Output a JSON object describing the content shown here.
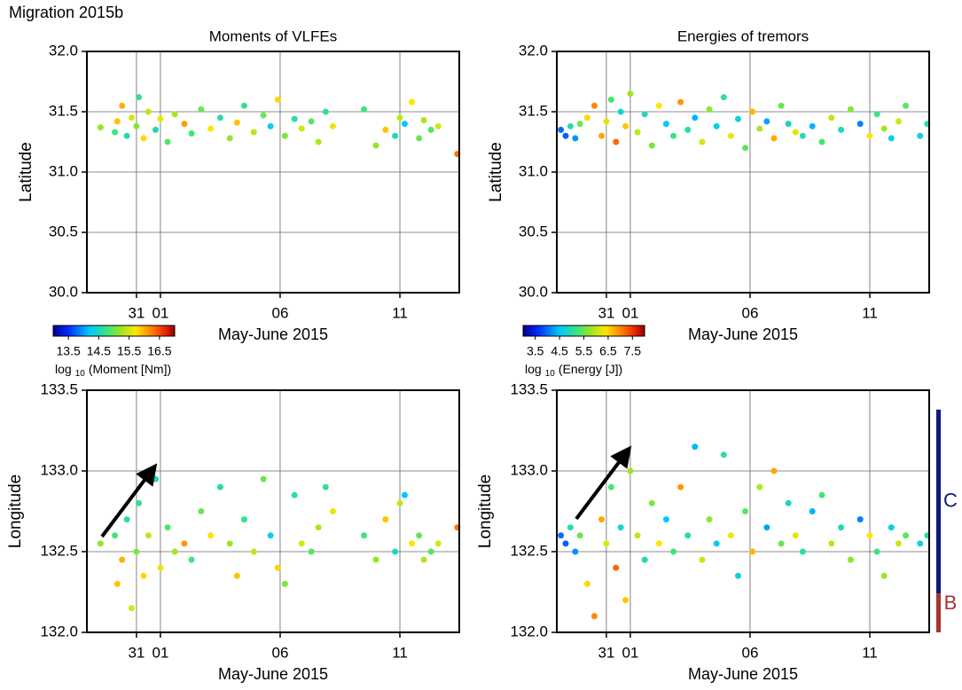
{
  "title": "Migration 2015b",
  "chart_data": [
    {
      "type": "scatter",
      "title": "Moments of VLFEs",
      "xlabel": "May-June 2015",
      "ylabel": "Latitude",
      "grid": true,
      "xlim": [
        28.93,
        44.48
      ],
      "xticks": [
        31,
        {
          "value": 32,
          "label": "01"
        },
        {
          "value": 37,
          "label": "06"
        },
        {
          "value": 42,
          "label": "11"
        }
      ],
      "ylim": [
        30,
        32
      ],
      "yticks": [
        {
          "value": 30,
          "label": "30.0"
        },
        30.5,
        {
          "value": 31,
          "label": "31.0"
        },
        31.5,
        {
          "value": 32,
          "label": "32.0"
        }
      ],
      "colormap": "jet",
      "colorbar": {
        "clim": [
          13,
          17
        ],
        "cticks": [
          13.5,
          14.5,
          15.5,
          16.5
        ],
        "label_prefix": "log",
        "label_subscript": "10",
        "label_text": "(Moment [Nm])"
      },
      "x": [
        29.5,
        30.1,
        30.2,
        30.4,
        30.6,
        30.8,
        31.0,
        31.1,
        31.3,
        31.5,
        31.8,
        32.0,
        32.3,
        32.6,
        33.0,
        33.3,
        33.7,
        34.1,
        34.5,
        34.9,
        35.2,
        35.5,
        35.9,
        36.3,
        36.6,
        36.9,
        37.2,
        37.6,
        37.9,
        38.3,
        38.6,
        38.9,
        39.2,
        40.5,
        41.0,
        41.4,
        41.8,
        42.0,
        42.2,
        42.5,
        42.8,
        43.0,
        43.3,
        43.6,
        44.4
      ],
      "y": [
        31.37,
        31.33,
        31.42,
        31.55,
        31.3,
        31.45,
        31.38,
        31.62,
        31.28,
        31.5,
        31.35,
        31.44,
        31.25,
        31.48,
        31.4,
        31.32,
        31.52,
        31.36,
        31.45,
        31.28,
        31.41,
        31.55,
        31.33,
        31.47,
        31.38,
        31.6,
        31.3,
        31.44,
        31.36,
        31.42,
        31.25,
        31.5,
        31.38,
        31.52,
        31.22,
        31.35,
        31.3,
        31.45,
        31.4,
        31.58,
        31.28,
        31.43,
        31.35,
        31.38,
        31.15
      ],
      "c": [
        15.2,
        14.8,
        15.9,
        16.0,
        14.6,
        15.5,
        15.1,
        14.7,
        15.8,
        15.4,
        14.5,
        15.6,
        14.9,
        15.3,
        16.1,
        14.8,
        15.0,
        15.7,
        14.6,
        15.2,
        15.9,
        14.7,
        15.4,
        15.0,
        14.3,
        15.8,
        15.1,
        14.6,
        15.5,
        14.9,
        15.3,
        14.7,
        15.6,
        14.8,
        15.2,
        15.9,
        14.5,
        15.4,
        14.2,
        15.7,
        15.0,
        15.3,
        14.9,
        15.5,
        16.3
      ]
    },
    {
      "type": "scatter",
      "title": "Energies of tremors",
      "xlabel": "May-June 2015",
      "ylabel": "Latitude",
      "grid": true,
      "xlim": [
        28.93,
        44.48
      ],
      "xticks": [
        31,
        {
          "value": 32,
          "label": "01"
        },
        {
          "value": 37,
          "label": "06"
        },
        {
          "value": 42,
          "label": "11"
        }
      ],
      "ylim": [
        30,
        32
      ],
      "yticks": [
        {
          "value": 30,
          "label": "30.0"
        },
        30.5,
        {
          "value": 31,
          "label": "31.0"
        },
        31.5,
        {
          "value": 32,
          "label": "32.0"
        }
      ],
      "colormap": "jet",
      "colorbar": {
        "clim": [
          3,
          8
        ],
        "cticks": [
          3.5,
          4.5,
          5.5,
          6.5,
          7.5
        ],
        "label_prefix": "log",
        "label_subscript": "10",
        "label_text": "(Energy [J])"
      },
      "x": [
        29.1,
        29.3,
        29.5,
        29.7,
        29.9,
        30.2,
        30.5,
        30.8,
        31.0,
        31.2,
        31.4,
        31.6,
        31.8,
        32.0,
        32.3,
        32.6,
        32.9,
        33.2,
        33.5,
        33.8,
        34.1,
        34.4,
        34.7,
        35.0,
        35.3,
        35.6,
        35.9,
        36.2,
        36.5,
        36.8,
        37.1,
        37.4,
        37.7,
        38.0,
        38.3,
        38.6,
        38.9,
        39.2,
        39.6,
        40.0,
        40.4,
        40.8,
        41.2,
        41.6,
        42.0,
        42.3,
        42.6,
        42.9,
        43.2,
        43.5,
        44.1,
        44.4
      ],
      "y": [
        31.35,
        31.3,
        31.38,
        31.28,
        31.4,
        31.45,
        31.55,
        31.3,
        31.42,
        31.6,
        31.25,
        31.5,
        31.38,
        31.65,
        31.33,
        31.48,
        31.22,
        31.55,
        31.4,
        31.3,
        31.58,
        31.35,
        31.45,
        31.25,
        31.52,
        31.38,
        31.62,
        31.3,
        31.44,
        31.2,
        31.5,
        31.36,
        31.42,
        31.28,
        31.55,
        31.4,
        31.33,
        31.3,
        31.38,
        31.25,
        31.45,
        31.35,
        31.52,
        31.4,
        31.3,
        31.48,
        31.36,
        31.28,
        31.42,
        31.55,
        31.3,
        31.4
      ],
      "c": [
        4.0,
        3.9,
        5.0,
        4.2,
        5.5,
        6.5,
        7.0,
        6.8,
        6.2,
        5.3,
        7.2,
        4.8,
        6.6,
        5.8,
        6.0,
        4.9,
        5.6,
        6.4,
        4.5,
        5.2,
        6.9,
        5.0,
        4.4,
        6.1,
        5.7,
        4.6,
        5.1,
        6.3,
        4.7,
        5.4,
        6.7,
        5.9,
        4.3,
        6.8,
        5.5,
        4.8,
        6.2,
        5.0,
        4.4,
        5.3,
        6.0,
        4.9,
        5.7,
        4.1,
        6.4,
        5.2,
        5.8,
        4.6,
        6.1,
        5.4,
        4.7,
        5.0
      ]
    },
    {
      "type": "scatter",
      "xlabel": "May-June 2015",
      "ylabel": "Longitude",
      "grid": true,
      "xlim": [
        28.93,
        44.48
      ],
      "xticks": [
        31,
        {
          "value": 32,
          "label": "01"
        },
        {
          "value": 37,
          "label": "06"
        },
        {
          "value": 42,
          "label": "11"
        }
      ],
      "ylim": [
        132,
        133.5
      ],
      "yticks": [
        {
          "value": 132,
          "label": "132.0"
        },
        132.5,
        {
          "value": 133,
          "label": "133.0"
        },
        133.5
      ],
      "colormap": "jet",
      "clim": [
        13,
        17
      ],
      "x": [
        29.5,
        30.1,
        30.2,
        30.4,
        30.6,
        30.8,
        31.0,
        31.1,
        31.3,
        31.5,
        31.8,
        32.0,
        32.3,
        32.6,
        33.0,
        33.3,
        33.7,
        34.1,
        34.5,
        34.9,
        35.2,
        35.5,
        35.9,
        36.3,
        36.6,
        36.9,
        37.2,
        37.6,
        37.9,
        38.3,
        38.6,
        38.9,
        39.2,
        40.5,
        41.0,
        41.4,
        41.8,
        42.0,
        42.2,
        42.5,
        42.8,
        43.0,
        43.3,
        43.6,
        44.4
      ],
      "y": [
        132.55,
        132.6,
        132.3,
        132.45,
        132.7,
        132.15,
        132.5,
        132.8,
        132.35,
        132.6,
        132.95,
        132.4,
        132.65,
        132.5,
        132.55,
        132.45,
        132.75,
        132.6,
        132.9,
        132.55,
        132.35,
        132.7,
        132.5,
        132.95,
        132.6,
        132.4,
        132.3,
        132.85,
        132.55,
        132.5,
        132.65,
        132.9,
        132.75,
        132.6,
        132.45,
        132.7,
        132.5,
        132.8,
        132.85,
        132.55,
        132.6,
        132.45,
        132.5,
        132.55,
        132.65
      ],
      "c": [
        15.2,
        14.8,
        15.9,
        16.0,
        14.6,
        15.5,
        15.1,
        14.7,
        15.8,
        15.4,
        14.5,
        15.6,
        14.9,
        15.3,
        16.1,
        14.8,
        15.0,
        15.7,
        14.6,
        15.2,
        15.9,
        14.7,
        15.4,
        15.0,
        14.3,
        15.8,
        15.1,
        14.6,
        15.5,
        14.9,
        15.3,
        14.7,
        15.6,
        14.8,
        15.2,
        15.9,
        14.5,
        15.4,
        14.2,
        15.7,
        15.0,
        15.3,
        14.9,
        15.5,
        16.3
      ]
    },
    {
      "type": "scatter",
      "xlabel": "May-June 2015",
      "ylabel": "Longitude",
      "grid": true,
      "xlim": [
        28.93,
        44.48
      ],
      "xticks": [
        31,
        {
          "value": 32,
          "label": "01"
        },
        {
          "value": 37,
          "label": "06"
        },
        {
          "value": 42,
          "label": "11"
        }
      ],
      "ylim": [
        132,
        133.5
      ],
      "yticks": [
        {
          "value": 132,
          "label": "132.0"
        },
        132.5,
        {
          "value": 133,
          "label": "133.0"
        },
        133.5
      ],
      "colormap": "jet",
      "clim": [
        3,
        8
      ],
      "regions": [
        {
          "label": "C",
          "color": "#0d1a7a",
          "range": [
            132.24,
            133.38
          ]
        },
        {
          "label": "B",
          "color": "#a8322f",
          "range": [
            132.0,
            132.24
          ]
        }
      ],
      "x": [
        29.1,
        29.3,
        29.5,
        29.7,
        29.9,
        30.2,
        30.5,
        30.8,
        31.0,
        31.2,
        31.4,
        31.6,
        31.8,
        32.0,
        32.3,
        32.6,
        32.9,
        33.2,
        33.5,
        33.8,
        34.1,
        34.4,
        34.7,
        35.0,
        35.3,
        35.6,
        35.9,
        36.2,
        36.5,
        36.8,
        37.1,
        37.4,
        37.7,
        38.0,
        38.3,
        38.6,
        38.9,
        39.2,
        39.6,
        40.0,
        40.4,
        40.8,
        41.2,
        41.6,
        42.0,
        42.3,
        42.6,
        42.9,
        43.2,
        43.5,
        44.1,
        44.4
      ],
      "y": [
        132.6,
        132.55,
        132.65,
        132.5,
        132.6,
        132.3,
        132.1,
        132.7,
        132.55,
        132.9,
        132.4,
        132.65,
        132.2,
        133.0,
        132.6,
        132.45,
        132.8,
        132.55,
        132.7,
        132.5,
        132.9,
        132.6,
        133.15,
        132.45,
        132.7,
        132.55,
        133.1,
        132.6,
        132.35,
        132.75,
        132.5,
        132.9,
        132.65,
        133.0,
        132.55,
        132.8,
        132.6,
        132.5,
        132.75,
        132.85,
        132.55,
        132.65,
        132.45,
        132.7,
        132.6,
        132.5,
        132.35,
        132.65,
        132.55,
        132.6,
        132.55,
        132.6
      ],
      "c": [
        4.0,
        3.9,
        5.0,
        4.2,
        5.5,
        6.5,
        7.0,
        6.8,
        6.2,
        5.3,
        7.2,
        4.8,
        6.6,
        5.8,
        6.0,
        4.9,
        5.6,
        6.4,
        4.5,
        5.2,
        6.9,
        5.0,
        4.4,
        6.1,
        5.7,
        4.6,
        5.1,
        6.3,
        4.7,
        5.4,
        6.7,
        5.9,
        4.3,
        6.8,
        5.5,
        4.8,
        6.2,
        5.0,
        4.4,
        5.3,
        6.0,
        4.9,
        5.7,
        4.1,
        6.4,
        5.2,
        5.8,
        4.6,
        6.1,
        5.4,
        4.7,
        5.0
      ]
    }
  ]
}
